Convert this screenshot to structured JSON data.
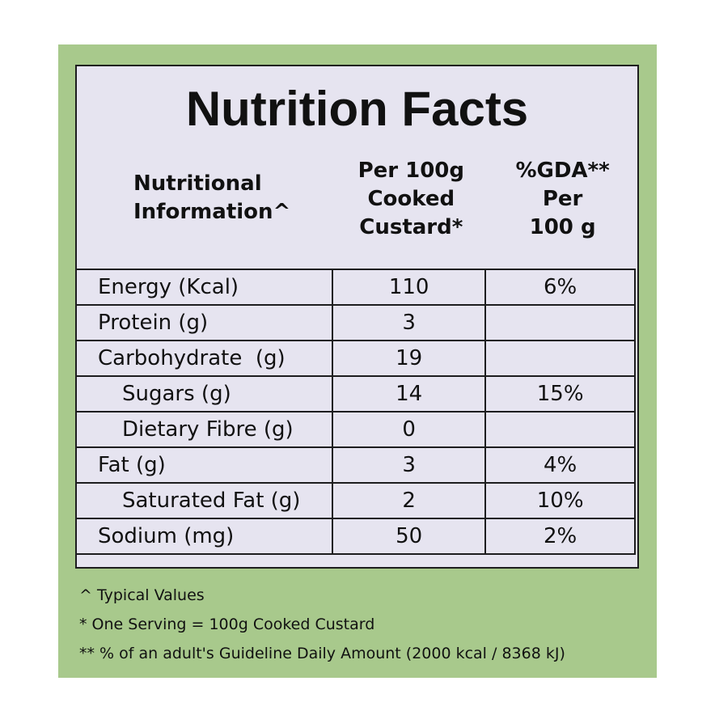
{
  "title": "Nutrition Facts",
  "header": [
    [
      "Nutritional",
      "Information^"
    ],
    [
      "Per 100g",
      "Cooked",
      "Custard*"
    ],
    [
      "%GDA**",
      "Per",
      "100 g"
    ]
  ],
  "rows": [
    [
      "Energy (Kcal)",
      "110",
      "6%"
    ],
    [
      "Protein (g)",
      "3"
    ],
    [
      "Carbohydrate  (g)",
      "19"
    ],
    [
      "Sugars (g)",
      "14",
      "15%"
    ],
    [
      "Dietary Fibre (g)",
      "0"
    ],
    [
      "Fat (g)",
      "3",
      "4%"
    ],
    [
      "Saturated Fat (g)",
      "2",
      "10%"
    ],
    [
      "Sodium (mg)",
      "50",
      "2%"
    ]
  ],
  "footnotes": [
    "^ Typical Values",
    "* One Serving = 100g Cooked Custard",
    "** % of an adult's Guideline Daily Amount (2000 kcal / 8368 kJ)"
  ]
}
